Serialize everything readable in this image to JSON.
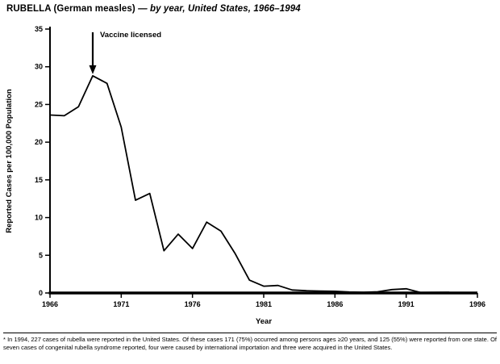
{
  "page": {
    "title_prefix": "RUBELLA (German measles)",
    "title_rest": " — by year, United States, 1966–1994"
  },
  "chart_data": {
    "type": "line",
    "title": "RUBELLA (German measles) — by year, United States, 1966–1994",
    "xlabel": "Year",
    "ylabel": "Reported Cases per 100,000 Population",
    "xlim": [
      1966,
      1996
    ],
    "ylim": [
      0,
      35
    ],
    "xticks": [
      1966,
      1971,
      1976,
      1981,
      1986,
      1991,
      1996
    ],
    "yticks": [
      0,
      5,
      10,
      15,
      20,
      25,
      30,
      35
    ],
    "grid": false,
    "legend": "none",
    "line_color": "#000000",
    "x": [
      1966,
      1967,
      1968,
      1969,
      1970,
      1971,
      1972,
      1973,
      1974,
      1975,
      1976,
      1977,
      1978,
      1979,
      1980,
      1981,
      1982,
      1983,
      1984,
      1985,
      1986,
      1987,
      1988,
      1989,
      1990,
      1991,
      1992,
      1993,
      1994
    ],
    "values": [
      23.6,
      23.5,
      24.7,
      28.8,
      27.8,
      22.0,
      12.3,
      13.2,
      5.6,
      7.8,
      5.9,
      9.4,
      8.2,
      5.2,
      1.7,
      0.9,
      1.0,
      0.4,
      0.3,
      0.25,
      0.23,
      0.13,
      0.09,
      0.16,
      0.45,
      0.56,
      0.06,
      0.08,
      0.09
    ],
    "annotation": {
      "label": "Vaccine licensed",
      "x": 1969,
      "y": 28.8
    }
  },
  "footnote": {
    "marker": "*",
    "text": "In 1994, 227 cases of rubella were reported in the United States. Of these cases 171 (75%) occurred among persons ages ≥20 years, and 125 (55%) were reported from one state. Of seven cases of congenital rubella syndrome reported, four were caused by international importation and three were acquired in the United States."
  }
}
